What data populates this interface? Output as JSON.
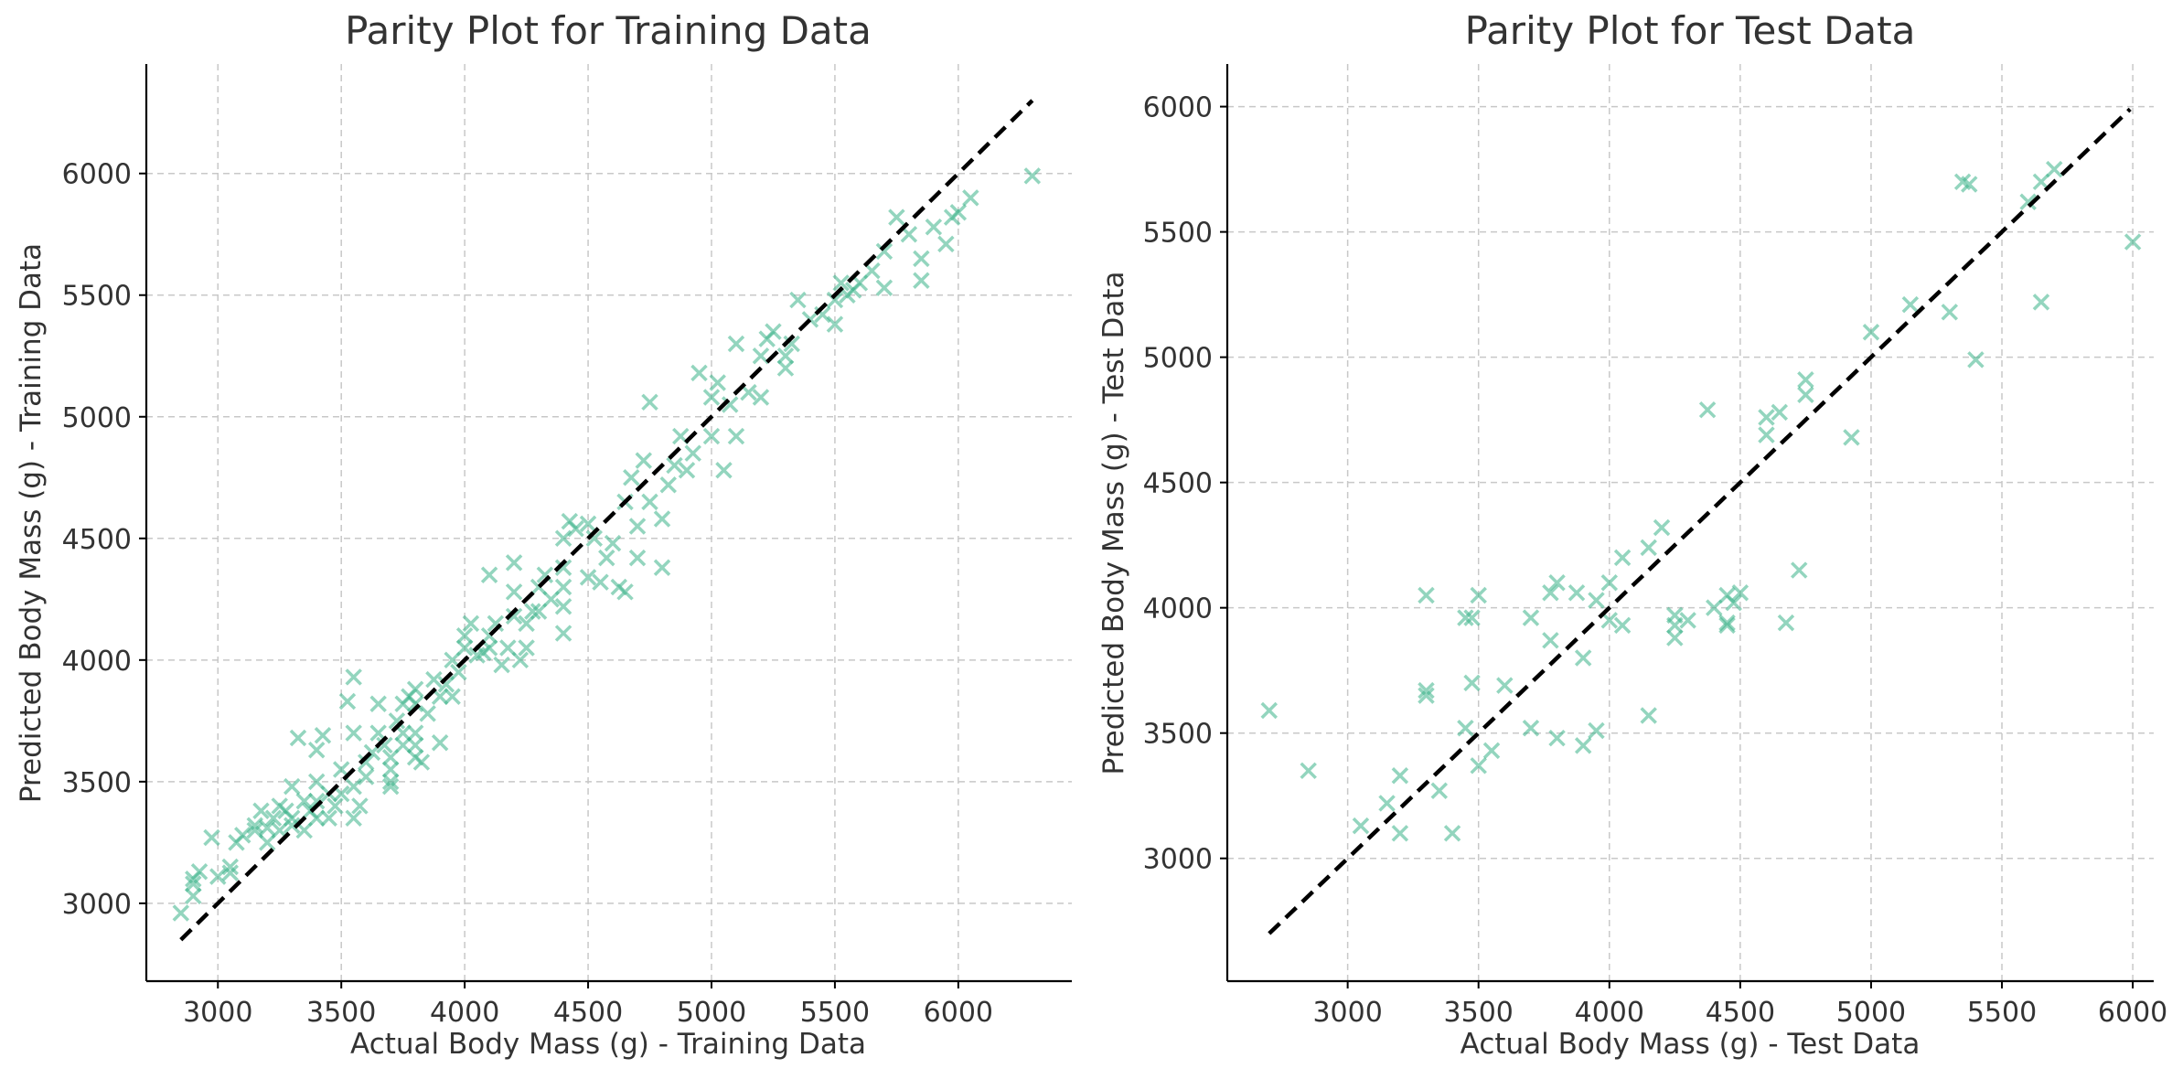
{
  "chart_data": [
    {
      "type": "scatter",
      "title": "Parity Plot for Training Data",
      "xlabel": "Actual Body Mass (g) - Training Data",
      "ylabel": "Predicted Body Mass (g) - Training Data",
      "xlim": [
        2710,
        6460
      ],
      "ylim": [
        2680,
        6450
      ],
      "xticks": [
        3000,
        3500,
        4000,
        4500,
        5000,
        5500,
        6000
      ],
      "yticks": [
        3000,
        3500,
        4000,
        4500,
        5000,
        5500,
        6000
      ],
      "grid": true,
      "marker": "x",
      "marker_color": "#3cb38a",
      "parity_line": [
        [
          2850,
          2850
        ],
        [
          6300,
          6300
        ]
      ],
      "points": [
        [
          2850,
          2960
        ],
        [
          2900,
          3030
        ],
        [
          2900,
          3080
        ],
        [
          2900,
          3100
        ],
        [
          2925,
          3130
        ],
        [
          2975,
          3270
        ],
        [
          3000,
          3110
        ],
        [
          3050,
          3125
        ],
        [
          3050,
          3150
        ],
        [
          3075,
          3250
        ],
        [
          3100,
          3280
        ],
        [
          3150,
          3300
        ],
        [
          3150,
          3320
        ],
        [
          3175,
          3380
        ],
        [
          3200,
          3250
        ],
        [
          3200,
          3310
        ],
        [
          3225,
          3350
        ],
        [
          3250,
          3300
        ],
        [
          3250,
          3400
        ],
        [
          3275,
          3380
        ],
        [
          3300,
          3320
        ],
        [
          3300,
          3350
        ],
        [
          3300,
          3480
        ],
        [
          3325,
          3680
        ],
        [
          3350,
          3300
        ],
        [
          3350,
          3420
        ],
        [
          3375,
          3380
        ],
        [
          3400,
          3350
        ],
        [
          3400,
          3420
        ],
        [
          3400,
          3500
        ],
        [
          3400,
          3630
        ],
        [
          3425,
          3690
        ],
        [
          3450,
          3350
        ],
        [
          3450,
          3450
        ],
        [
          3475,
          3400
        ],
        [
          3500,
          3450
        ],
        [
          3500,
          3550
        ],
        [
          3525,
          3830
        ],
        [
          3550,
          3350
        ],
        [
          3550,
          3480
        ],
        [
          3550,
          3700
        ],
        [
          3550,
          3930
        ],
        [
          3575,
          3400
        ],
        [
          3600,
          3520
        ],
        [
          3600,
          3580
        ],
        [
          3625,
          3620
        ],
        [
          3650,
          3700
        ],
        [
          3650,
          3820
        ],
        [
          3675,
          3650
        ],
        [
          3700,
          3480
        ],
        [
          3700,
          3500
        ],
        [
          3700,
          3550
        ],
        [
          3700,
          3600
        ],
        [
          3725,
          3750
        ],
        [
          3750,
          3650
        ],
        [
          3750,
          3700
        ],
        [
          3750,
          3820
        ],
        [
          3775,
          3850
        ],
        [
          3800,
          3600
        ],
        [
          3800,
          3650
        ],
        [
          3800,
          3700
        ],
        [
          3800,
          3820
        ],
        [
          3800,
          3880
        ],
        [
          3825,
          3580
        ],
        [
          3850,
          3780
        ],
        [
          3875,
          3920
        ],
        [
          3900,
          3660
        ],
        [
          3900,
          3850
        ],
        [
          3925,
          3900
        ],
        [
          3950,
          3850
        ],
        [
          3950,
          4000
        ],
        [
          3975,
          3950
        ],
        [
          4000,
          4050
        ],
        [
          4000,
          4100
        ],
        [
          4025,
          4150
        ],
        [
          4050,
          4020
        ],
        [
          4075,
          4030
        ],
        [
          4100,
          4050
        ],
        [
          4100,
          4100
        ],
        [
          4100,
          4350
        ],
        [
          4125,
          4150
        ],
        [
          4150,
          3980
        ],
        [
          4175,
          4050
        ],
        [
          4200,
          4180
        ],
        [
          4200,
          4280
        ],
        [
          4200,
          4400
        ],
        [
          4225,
          4000
        ],
        [
          4250,
          4050
        ],
        [
          4250,
          4150
        ],
        [
          4275,
          4200
        ],
        [
          4300,
          4200
        ],
        [
          4300,
          4300
        ],
        [
          4325,
          4350
        ],
        [
          4350,
          4250
        ],
        [
          4400,
          4110
        ],
        [
          4400,
          4220
        ],
        [
          4400,
          4300
        ],
        [
          4400,
          4380
        ],
        [
          4400,
          4500
        ],
        [
          4425,
          4570
        ],
        [
          4450,
          4540
        ],
        [
          4500,
          4340
        ],
        [
          4500,
          4560
        ],
        [
          4525,
          4500
        ],
        [
          4550,
          4320
        ],
        [
          4575,
          4420
        ],
        [
          4600,
          4480
        ],
        [
          4625,
          4300
        ],
        [
          4650,
          4280
        ],
        [
          4650,
          4650
        ],
        [
          4675,
          4750
        ],
        [
          4700,
          4420
        ],
        [
          4700,
          4550
        ],
        [
          4725,
          4820
        ],
        [
          4750,
          4650
        ],
        [
          4750,
          5060
        ],
        [
          4800,
          4380
        ],
        [
          4800,
          4580
        ],
        [
          4825,
          4720
        ],
        [
          4850,
          4800
        ],
        [
          4875,
          4920
        ],
        [
          4900,
          4780
        ],
        [
          4925,
          4850
        ],
        [
          4950,
          5180
        ],
        [
          5000,
          4920
        ],
        [
          5000,
          5080
        ],
        [
          5025,
          5140
        ],
        [
          5050,
          4780
        ],
        [
          5075,
          5050
        ],
        [
          5100,
          4920
        ],
        [
          5100,
          5300
        ],
        [
          5150,
          5100
        ],
        [
          5200,
          5080
        ],
        [
          5200,
          5250
        ],
        [
          5225,
          5320
        ],
        [
          5250,
          5350
        ],
        [
          5300,
          5200
        ],
        [
          5300,
          5250
        ],
        [
          5325,
          5300
        ],
        [
          5350,
          5480
        ],
        [
          5400,
          5400
        ],
        [
          5450,
          5420
        ],
        [
          5500,
          5380
        ],
        [
          5500,
          5480
        ],
        [
          5525,
          5550
        ],
        [
          5550,
          5500
        ],
        [
          5575,
          5520
        ],
        [
          5600,
          5550
        ],
        [
          5650,
          5600
        ],
        [
          5700,
          5530
        ],
        [
          5700,
          5680
        ],
        [
          5750,
          5820
        ],
        [
          5800,
          5750
        ],
        [
          5850,
          5560
        ],
        [
          5850,
          5650
        ],
        [
          5900,
          5780
        ],
        [
          5950,
          5710
        ],
        [
          5975,
          5820
        ],
        [
          6000,
          5840
        ],
        [
          6050,
          5900
        ],
        [
          6300,
          5990
        ]
      ]
    },
    {
      "type": "scatter",
      "title": "Parity Plot for Test Data",
      "xlabel": "Actual Body Mass (g) - Test Data",
      "ylabel": "Predicted Body Mass (g) - Test Data",
      "xlim": [
        2540,
        6080
      ],
      "ylim": [
        2510,
        6170
      ],
      "xticks": [
        3000,
        3500,
        4000,
        4500,
        5000,
        5500,
        6000
      ],
      "yticks": [
        3000,
        3500,
        4000,
        4500,
        5000,
        5500,
        6000
      ],
      "grid": true,
      "marker": "x",
      "marker_color": "#3cb38a",
      "parity_line": [
        [
          2700,
          2700
        ],
        [
          5990,
          5990
        ]
      ],
      "points": [
        [
          2700,
          3590
        ],
        [
          2850,
          3350
        ],
        [
          3050,
          3130
        ],
        [
          3150,
          3220
        ],
        [
          3200,
          3100
        ],
        [
          3200,
          3330
        ],
        [
          3300,
          3650
        ],
        [
          3300,
          3670
        ],
        [
          3300,
          4050
        ],
        [
          3350,
          3270
        ],
        [
          3400,
          3100
        ],
        [
          3450,
          3520
        ],
        [
          3450,
          3960
        ],
        [
          3475,
          3700
        ],
        [
          3475,
          3960
        ],
        [
          3500,
          3370
        ],
        [
          3500,
          4050
        ],
        [
          3550,
          3430
        ],
        [
          3600,
          3690
        ],
        [
          3700,
          3520
        ],
        [
          3700,
          3960
        ],
        [
          3775,
          3870
        ],
        [
          3775,
          4060
        ],
        [
          3800,
          3480
        ],
        [
          3800,
          4100
        ],
        [
          3875,
          4060
        ],
        [
          3900,
          3450
        ],
        [
          3900,
          3800
        ],
        [
          3950,
          3510
        ],
        [
          3950,
          4030
        ],
        [
          4000,
          3950
        ],
        [
          4000,
          4100
        ],
        [
          4050,
          3930
        ],
        [
          4050,
          4200
        ],
        [
          4150,
          3570
        ],
        [
          4150,
          4240
        ],
        [
          4200,
          4320
        ],
        [
          4250,
          3880
        ],
        [
          4250,
          3930
        ],
        [
          4250,
          3970
        ],
        [
          4300,
          3950
        ],
        [
          4375,
          4790
        ],
        [
          4400,
          4000
        ],
        [
          4450,
          3930
        ],
        [
          4450,
          3940
        ],
        [
          4450,
          4050
        ],
        [
          4475,
          4020
        ],
        [
          4500,
          4060
        ],
        [
          4600,
          4690
        ],
        [
          4600,
          4760
        ],
        [
          4650,
          4780
        ],
        [
          4675,
          3940
        ],
        [
          4725,
          4150
        ],
        [
          4750,
          4850
        ],
        [
          4750,
          4910
        ],
        [
          4925,
          4680
        ],
        [
          5000,
          5100
        ],
        [
          5150,
          5210
        ],
        [
          5300,
          5180
        ],
        [
          5350,
          5700
        ],
        [
          5375,
          5690
        ],
        [
          5400,
          4990
        ],
        [
          5600,
          5620
        ],
        [
          5650,
          5220
        ],
        [
          5650,
          5700
        ],
        [
          5700,
          5750
        ],
        [
          6000,
          5460
        ]
      ]
    }
  ]
}
